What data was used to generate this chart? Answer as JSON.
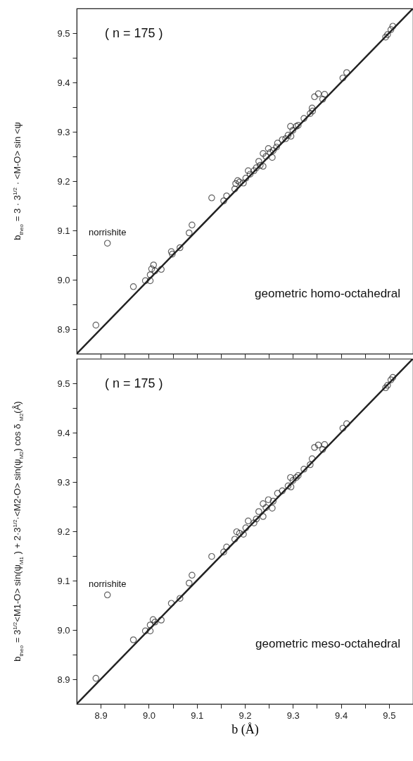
{
  "chart_data": [
    {
      "type": "scatter",
      "ylabel": "b$_{theo}$ = 3 · 3$^{1/2}$ · <M-O> sin <ψ",
      "tick_labels": "y",
      "xlim": [
        8.85,
        9.55
      ],
      "ylim": [
        8.85,
        9.55
      ],
      "xticks": [
        8.9,
        8.95,
        9,
        9.05,
        9.1,
        9.15,
        9.2,
        9.25,
        9.3,
        9.35,
        9.4,
        9.45,
        9.5
      ],
      "yticks": [
        8.9,
        {
          "value": 8.95,
          "label": null
        },
        {
          "value": 9,
          "label": "9.0"
        },
        {
          "value": 9.05,
          "label": null
        },
        9.1,
        {
          "value": 9.15,
          "label": null
        },
        9.2,
        {
          "value": 9.25,
          "label": null
        },
        9.3,
        {
          "value": 9.35,
          "label": null
        },
        9.4,
        {
          "value": 9.45,
          "label": null
        },
        9.5
      ],
      "annotations": [
        "( n = 175 )",
        "geometric homo-octahedral",
        {
          "text": "norrishite",
          "x": 8.914,
          "y": 9.074
        }
      ],
      "series": [
        {
          "color": "#222222",
          "marker": "circle",
          "x": [
            8.89,
            8.914,
            8.968,
            8.993,
            9.003,
            9.003,
            9.006,
            9.01,
            9.013,
            9.026,
            9.047,
            9.049,
            9.065,
            9.084,
            9.09,
            9.131,
            9.156,
            9.162,
            9.179,
            9.181,
            9.185,
            9.189,
            9.197,
            9.202,
            9.207,
            9.211,
            9.219,
            9.224,
            9.229,
            9.232,
            9.238,
            9.238,
            9.244,
            9.249,
            9.253,
            9.257,
            9.259,
            9.268,
            9.266,
            9.278,
            9.285,
            9.29,
            9.295,
            9.296,
            9.3,
            9.307,
            9.311,
            9.323,
            9.336,
            9.34,
            9.341,
            9.345,
            9.353,
            9.362,
            9.366,
            9.404,
            9.412,
            9.493,
            9.497,
            9.504,
            9.508
          ],
          "values": [
            8.908,
            9.074,
            8.986,
            8.998,
            8.998,
            9.01,
            9.022,
            9.03,
            9.018,
            9.021,
            9.057,
            9.052,
            9.065,
            9.095,
            9.111,
            9.166,
            9.16,
            9.17,
            9.184,
            9.195,
            9.201,
            9.198,
            9.196,
            9.206,
            9.221,
            9.214,
            9.221,
            9.227,
            9.24,
            9.232,
            9.256,
            9.23,
            9.25,
            9.266,
            9.258,
            9.248,
            9.262,
            9.277,
            9.269,
            9.284,
            9.286,
            9.293,
            9.311,
            9.291,
            9.303,
            9.311,
            9.313,
            9.327,
            9.337,
            9.348,
            9.342,
            9.371,
            9.377,
            9.366,
            9.376,
            9.409,
            9.42,
            9.492,
            9.497,
            9.507,
            9.514
          ]
        },
        {
          "type": "line",
          "color": "#222222",
          "x": [
            8.85,
            9.55
          ],
          "values": [
            8.85,
            9.55
          ]
        }
      ]
    },
    {
      "type": "scatter",
      "ylabel": "b$_{theo}$ = 3$^{1/2}$<M1-O> sin(ψ$_{M1}$ ) + 2·3$^{1/2}$·<M2-O> sin(ψ$_{M2}$) cos δ $_{M2}$(Å)",
      "xlabel": "b (Å)",
      "xlim": [
        8.85,
        9.55
      ],
      "ylim": [
        8.85,
        9.55
      ],
      "xticks": [
        8.9,
        {
          "value": 8.95,
          "label": null
        },
        {
          "value": 9,
          "label": "9.0"
        },
        {
          "value": 9.05,
          "label": null
        },
        9.1,
        {
          "value": 9.15,
          "label": null
        },
        9.2,
        {
          "value": 9.25,
          "label": null
        },
        9.3,
        {
          "value": 9.35,
          "label": null
        },
        9.4,
        {
          "value": 9.45,
          "label": null
        },
        9.5
      ],
      "yticks": [
        8.9,
        {
          "value": 8.95,
          "label": null
        },
        {
          "value": 9,
          "label": "9.0"
        },
        {
          "value": 9.05,
          "label": null
        },
        9.1,
        {
          "value": 9.15,
          "label": null
        },
        9.2,
        {
          "value": 9.25,
          "label": null
        },
        9.3,
        {
          "value": 9.35,
          "label": null
        },
        9.4,
        {
          "value": 9.45,
          "label": null
        },
        9.5
      ],
      "annotations": [
        "( n = 175 )",
        "geometric meso-octahedral",
        {
          "text": "norrishite",
          "x": 8.914,
          "y": 9.071
        }
      ],
      "series": [
        {
          "color": "#222222",
          "marker": "circle",
          "x": [
            8.89,
            8.914,
            8.968,
            8.993,
            9.003,
            9.003,
            9.009,
            9.013,
            9.026,
            9.047,
            9.065,
            9.084,
            9.09,
            9.131,
            9.156,
            9.162,
            9.179,
            9.183,
            9.189,
            9.197,
            9.202,
            9.207,
            9.219,
            9.224,
            9.229,
            9.238,
            9.238,
            9.244,
            9.249,
            9.257,
            9.259,
            9.268,
            9.278,
            9.29,
            9.295,
            9.296,
            9.3,
            9.307,
            9.311,
            9.323,
            9.336,
            9.34,
            9.345,
            9.353,
            9.362,
            9.366,
            9.404,
            9.412,
            9.493,
            9.497,
            9.504,
            9.508
          ],
          "values": [
            8.902,
            9.071,
            8.98,
            8.998,
            8.998,
            9.01,
            9.021,
            9.016,
            9.02,
            9.054,
            9.064,
            9.095,
            9.111,
            9.149,
            9.158,
            9.168,
            9.184,
            9.199,
            9.196,
            9.194,
            9.207,
            9.221,
            9.217,
            9.225,
            9.24,
            9.256,
            9.23,
            9.248,
            9.264,
            9.247,
            9.261,
            9.277,
            9.282,
            9.292,
            9.309,
            9.29,
            9.303,
            9.309,
            9.313,
            9.326,
            9.335,
            9.347,
            9.37,
            9.375,
            9.366,
            9.376,
            9.409,
            9.418,
            9.491,
            9.496,
            9.507,
            9.512
          ]
        },
        {
          "type": "line",
          "color": "#222222",
          "x": [
            8.85,
            9.55
          ],
          "values": [
            8.85,
            9.55
          ]
        }
      ]
    }
  ]
}
